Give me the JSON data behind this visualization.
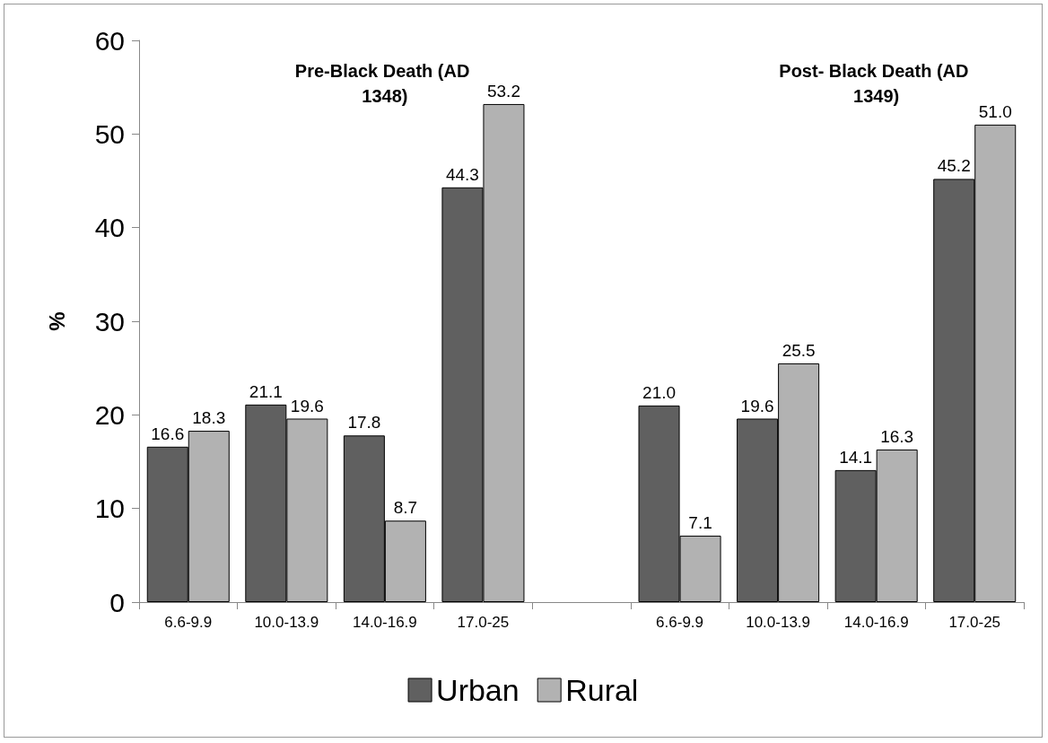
{
  "chart_data": {
    "type": "bar",
    "ylabel": "%",
    "categories": [
      "6.6-9.9",
      "10.0-13.9",
      "14.0-16.9",
      "17.0-25",
      null,
      "6.6-9.9",
      "10.0-13.9",
      "14.0-16.9",
      "17.0-25"
    ],
    "series": [
      {
        "name": "Urban",
        "color": "#606060",
        "values": [
          16.6,
          21.1,
          17.8,
          44.3,
          null,
          21.0,
          19.6,
          14.1,
          45.2
        ],
        "value_labels": [
          "16.6",
          "21.1",
          "17.8",
          "44.3",
          null,
          "21.0",
          "19.6",
          "14.1",
          "45.2"
        ]
      },
      {
        "name": "Rural",
        "color": "#b2b2b2",
        "values": [
          18.3,
          19.6,
          8.7,
          53.2,
          null,
          7.1,
          25.5,
          16.3,
          51.0
        ],
        "value_labels": [
          "18.3",
          "19.6",
          "8.7",
          "53.2",
          null,
          "7.1",
          "25.5",
          "16.3",
          "51.0"
        ]
      }
    ],
    "ylim": [
      0,
      60
    ],
    "yticks": [
      0,
      10,
      20,
      30,
      40,
      50,
      60
    ],
    "grid": false,
    "legend": "bottom",
    "annotations": [
      "Pre-Black Death (AD 1348)",
      "Post- Black Death (AD 1349)"
    ]
  }
}
